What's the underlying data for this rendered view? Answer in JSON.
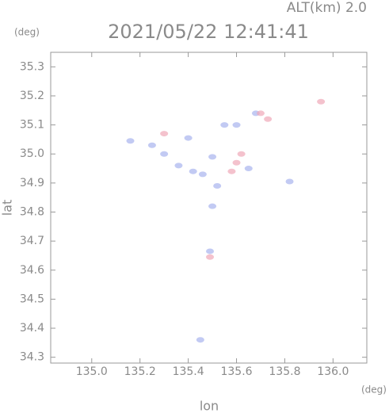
{
  "chart_data": {
    "type": "scatter",
    "title": "2021/05/22 12:41:41",
    "annotation": "ALT(km) 2.0",
    "y_unit": "(deg)",
    "x_unit": "(deg)",
    "x_label": "lon",
    "y_label": "lat",
    "xlim": [
      134.83,
      136.14
    ],
    "ylim": [
      34.28,
      35.35
    ],
    "xticks": [
      {
        "value": 135,
        "label": "135.0"
      },
      135.2,
      135.4,
      135.6,
      135.8,
      {
        "value": 136,
        "label": "136.0"
      }
    ],
    "yticks": [
      34.3,
      34.4,
      34.5,
      34.6,
      34.7,
      34.8,
      34.9,
      {
        "value": 35,
        "label": "35.0"
      },
      35.1,
      35.2,
      35.3
    ],
    "series": [
      {
        "color": "#a8b4ee",
        "x": [
          135.16,
          135.25,
          135.3,
          135.36,
          135.4,
          135.42,
          135.46,
          135.5,
          135.52,
          135.55,
          135.6,
          135.65,
          135.5,
          135.49,
          135.45,
          135.82,
          135.68
        ],
        "values": [
          35.045,
          35.03,
          35.0,
          34.96,
          35.055,
          34.94,
          34.93,
          34.99,
          34.89,
          35.1,
          35.1,
          34.95,
          34.82,
          34.665,
          34.36,
          34.905,
          35.14
        ]
      },
      {
        "color": "#f0a8b8",
        "x": [
          135.3,
          135.58,
          135.6,
          135.7,
          135.73,
          135.95,
          135.49,
          135.62
        ],
        "values": [
          35.07,
          34.94,
          34.97,
          35.14,
          35.12,
          35.18,
          34.645,
          35.0
        ]
      }
    ]
  }
}
